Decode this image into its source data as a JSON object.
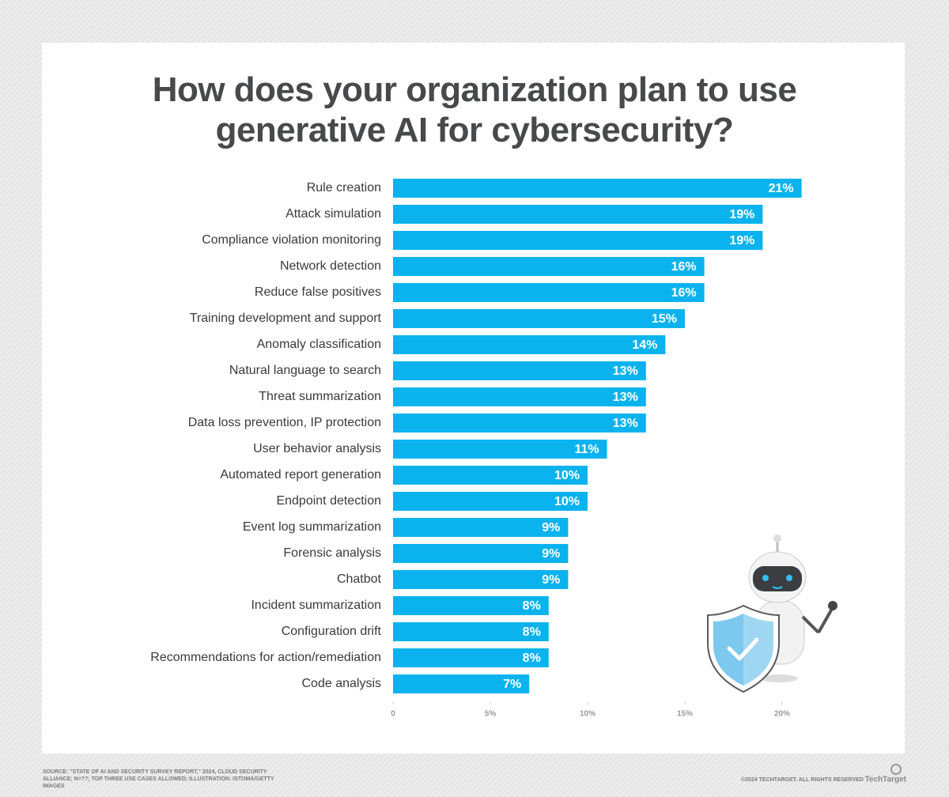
{
  "chart_data": {
    "type": "hbar",
    "title": "How does your organization plan to use generative AI for cybersecurity?",
    "categories": [
      "Rule creation",
      "Attack simulation",
      "Compliance violation monitoring",
      "Network detection",
      "Reduce false positives",
      "Training development and support",
      "Anomaly classification",
      "Natural language to search",
      "Threat summarization",
      "Data loss prevention, IP protection",
      "User behavior analysis",
      "Automated report generation",
      "Endpoint detection",
      "Event log summarization",
      "Forensic analysis",
      "Chatbot",
      "Incident summarization",
      "Configuration drift",
      "Recommendations for action/remediation",
      "Code analysis"
    ],
    "values": [
      21,
      19,
      19,
      16,
      16,
      15,
      14,
      13,
      13,
      13,
      11,
      10,
      10,
      9,
      9,
      9,
      8,
      8,
      8,
      7
    ],
    "value_labels": [
      "21%",
      "19%",
      "19%",
      "16%",
      "16%",
      "15%",
      "14%",
      "13%",
      "13%",
      "13%",
      "11%",
      "10%",
      "10%",
      "9%",
      "9%",
      "9%",
      "8%",
      "8%",
      "8%",
      "7%"
    ],
    "color": "#0bb3ee",
    "xlim": [
      0,
      20
    ],
    "xticks": [
      0,
      {
        "value": 5,
        "label": "5%"
      },
      {
        "value": 10,
        "label": "10%"
      },
      {
        "value": 15,
        "label": "15%"
      },
      {
        "value": 20,
        "label": "20%"
      }
    ],
    "source": "SOURCE: \"STATE OF AI AND SECURITY SURVEY REPORT,\" 2024, CLOUD SECURITY ALLIANCE; N=??; TOP THREE USE CASES ALLOWED; ILLUSTRATION: ISTOMA/GETTY IMAGES",
    "copyright": "©2024 TECHTARGET. ALL RIGHTS RESERVED",
    "logo": "TechTarget"
  }
}
